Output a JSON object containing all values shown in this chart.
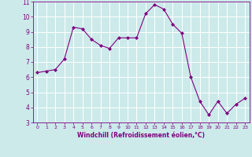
{
  "x": [
    0,
    1,
    2,
    3,
    4,
    5,
    6,
    7,
    8,
    9,
    10,
    11,
    12,
    13,
    14,
    15,
    16,
    17,
    18,
    19,
    20,
    21,
    22,
    23
  ],
  "y": [
    6.3,
    6.4,
    6.5,
    7.2,
    9.3,
    9.2,
    8.5,
    8.1,
    7.9,
    8.6,
    8.6,
    8.6,
    10.2,
    10.8,
    10.5,
    9.5,
    8.9,
    6.0,
    4.4,
    3.5,
    4.4,
    3.6,
    4.2,
    4.6
  ],
  "line_color": "#800080",
  "marker": "D",
  "marker_size": 2.0,
  "bg_color": "#cceaea",
  "grid_color": "#ffffff",
  "xlabel": "Windchill (Refroidissement éolien,°C)",
  "xlabel_color": "#800080",
  "tick_color": "#800080",
  "ylim": [
    3,
    11
  ],
  "xlim": [
    -0.5,
    23.5
  ],
  "yticks": [
    3,
    4,
    5,
    6,
    7,
    8,
    9,
    10,
    11
  ],
  "xticks": [
    0,
    1,
    2,
    3,
    4,
    5,
    6,
    7,
    8,
    9,
    10,
    11,
    12,
    13,
    14,
    15,
    16,
    17,
    18,
    19,
    20,
    21,
    22,
    23
  ]
}
